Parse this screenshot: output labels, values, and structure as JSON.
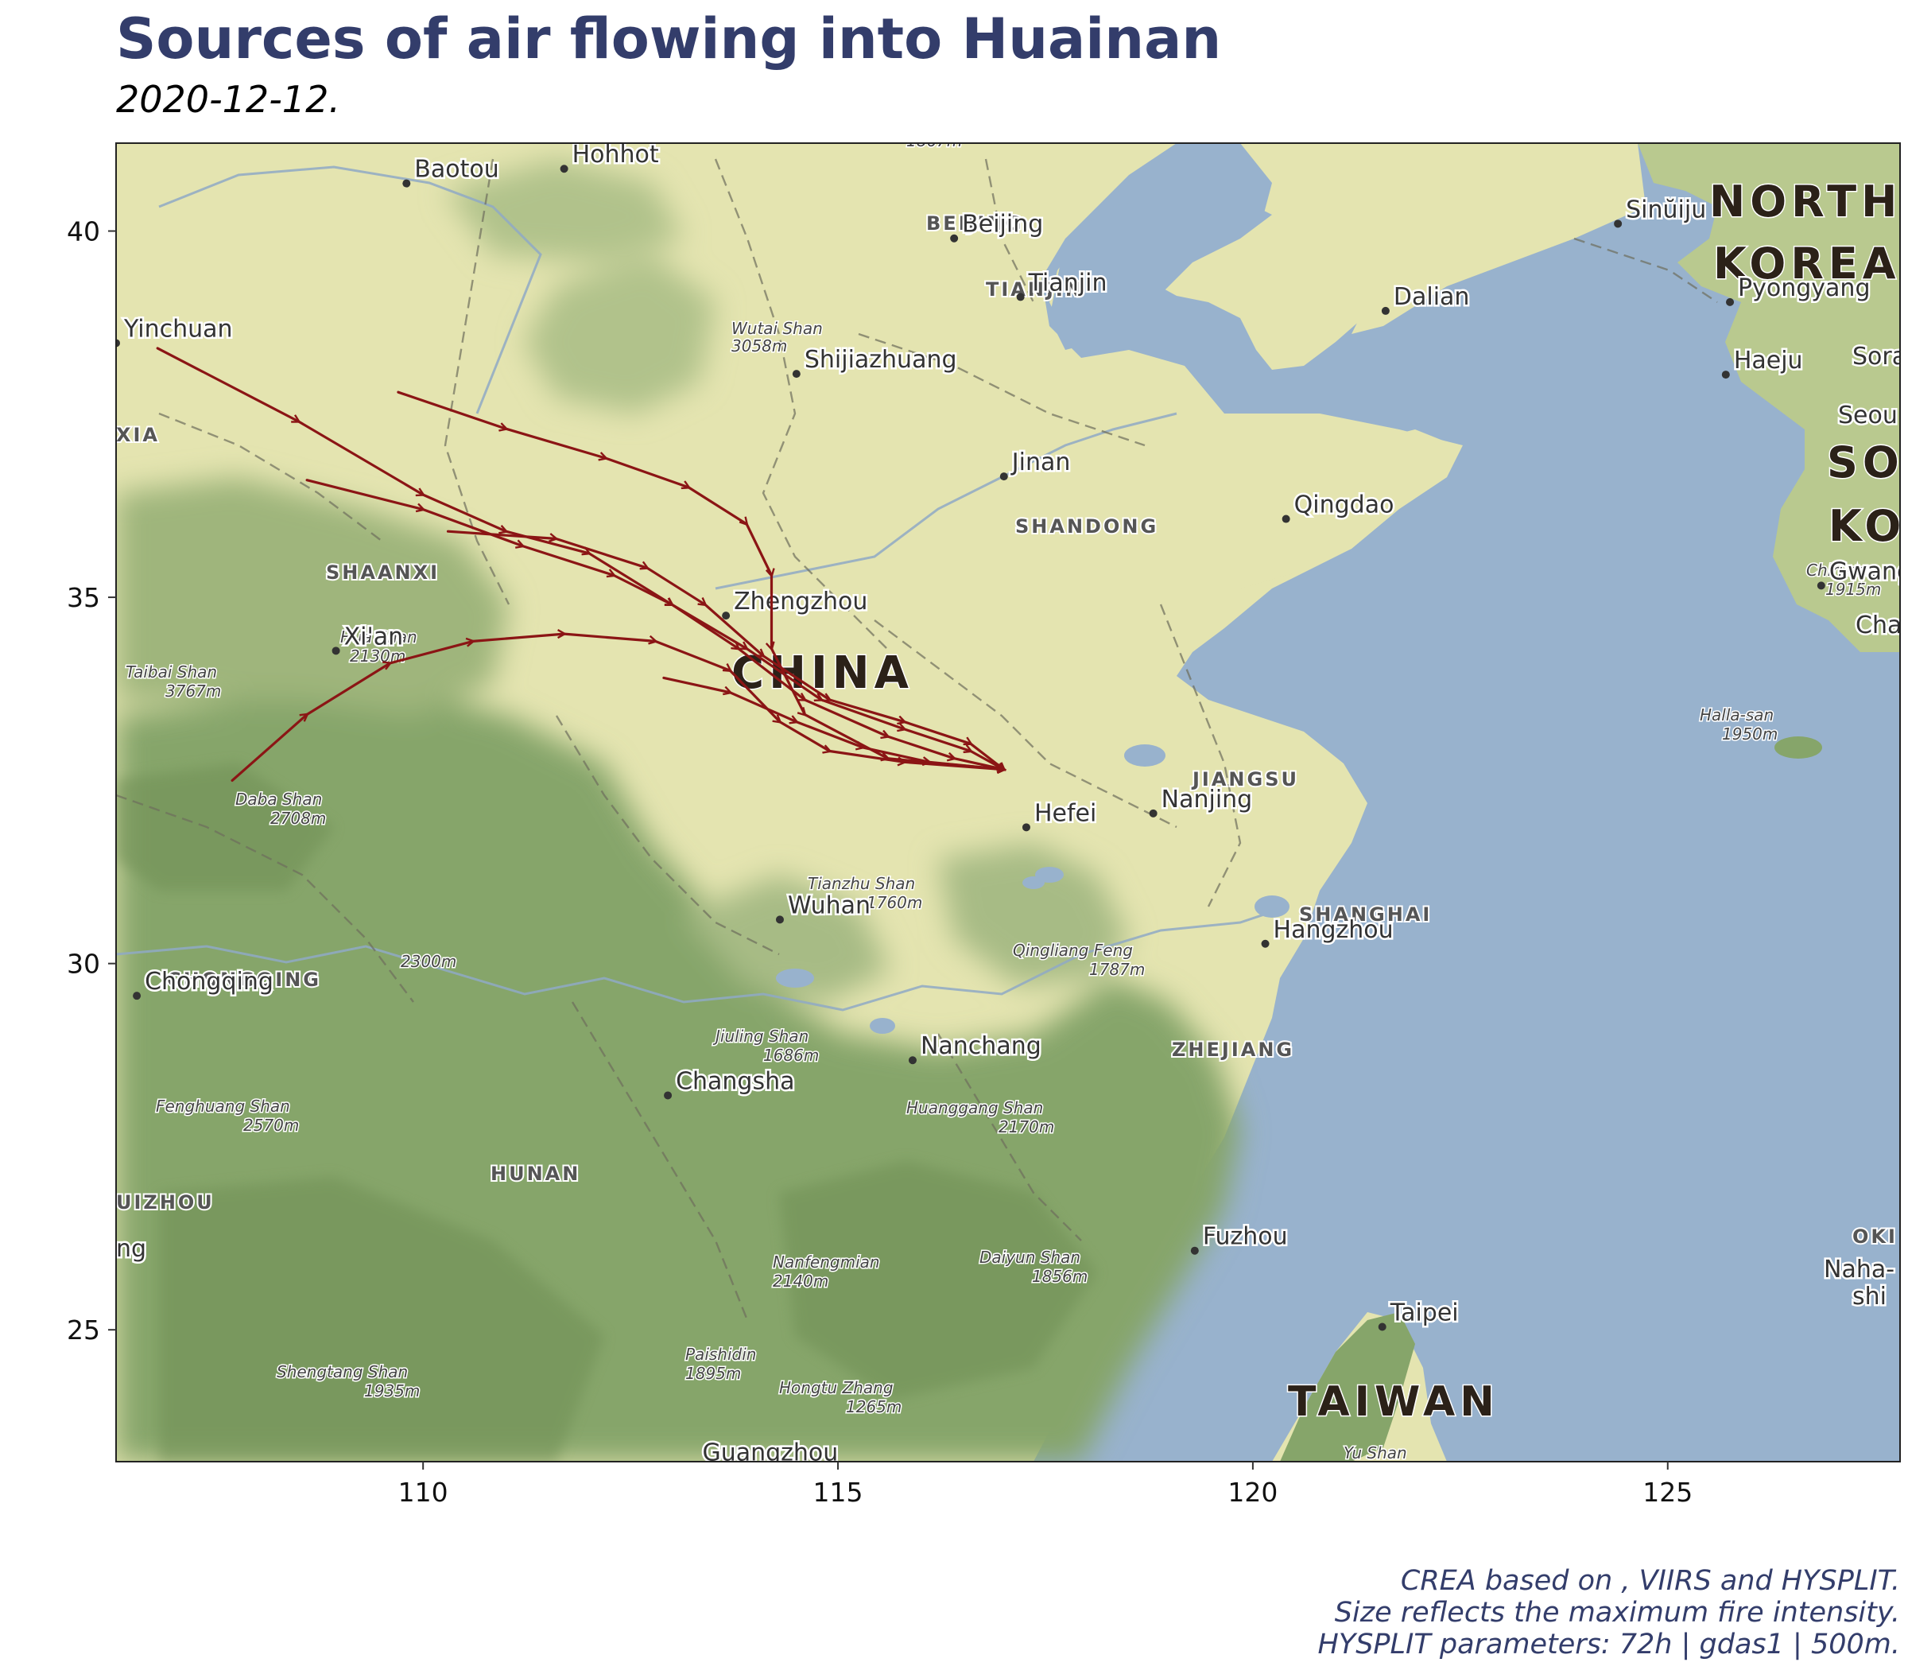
{
  "title": "Sources of air flowing into Huainan",
  "subtitle": "2020-12-12.",
  "caption": [
    "CREA based on , VIIRS and HYSPLIT.",
    "Size reflects the maximum fire intensity.",
    "HYSPLIT parameters: 72h | gdas1 | 500m."
  ],
  "colors": {
    "title": "#333d6b",
    "trajectory": "#8b1515",
    "sea": "#98b2cd",
    "land": "#e4e4b0",
    "forest": "#86a56a"
  },
  "chart_data": {
    "type": "map",
    "x_ticks": [
      110,
      115,
      120,
      125
    ],
    "y_ticks": [
      25,
      30,
      35,
      40
    ],
    "xlim": [
      106.3,
      127.8
    ],
    "ylim": [
      23.2,
      41.2
    ],
    "destination": {
      "name": "Huainan",
      "lon": 117.0,
      "lat": 32.65
    },
    "trajectories": [
      [
        [
          106.8,
          38.4
        ],
        [
          108.5,
          37.4
        ],
        [
          110.0,
          36.4
        ],
        [
          111.0,
          35.9
        ],
        [
          112.0,
          35.6
        ],
        [
          113.0,
          34.9
        ],
        [
          113.8,
          34.3
        ],
        [
          114.6,
          33.6
        ],
        [
          115.6,
          33.1
        ],
        [
          116.4,
          32.8
        ],
        [
          117.0,
          32.65
        ]
      ],
      [
        [
          109.7,
          37.8
        ],
        [
          111.0,
          37.3
        ],
        [
          112.2,
          36.9
        ],
        [
          113.2,
          36.5
        ],
        [
          113.9,
          36.0
        ],
        [
          114.2,
          35.3
        ],
        [
          114.2,
          34.3
        ],
        [
          114.6,
          33.4
        ],
        [
          115.6,
          32.8
        ],
        [
          117.0,
          32.65
        ]
      ],
      [
        [
          108.6,
          36.6
        ],
        [
          110.0,
          36.2
        ],
        [
          111.2,
          35.7
        ],
        [
          112.3,
          35.3
        ],
        [
          113.0,
          34.9
        ],
        [
          113.9,
          34.3
        ],
        [
          114.8,
          33.6
        ],
        [
          115.8,
          33.2
        ],
        [
          116.6,
          32.9
        ],
        [
          117.0,
          32.65
        ]
      ],
      [
        [
          107.7,
          32.5
        ],
        [
          108.6,
          33.4
        ],
        [
          109.6,
          34.1
        ],
        [
          110.6,
          34.4
        ],
        [
          111.7,
          34.5
        ],
        [
          112.8,
          34.4
        ],
        [
          113.7,
          34.0
        ],
        [
          114.3,
          33.3
        ],
        [
          114.9,
          32.9
        ],
        [
          115.8,
          32.75
        ],
        [
          117.0,
          32.65
        ]
      ],
      [
        [
          110.3,
          35.9
        ],
        [
          111.6,
          35.8
        ],
        [
          112.7,
          35.4
        ],
        [
          113.4,
          34.9
        ],
        [
          114.1,
          34.2
        ],
        [
          114.9,
          33.6
        ],
        [
          115.8,
          33.3
        ],
        [
          116.6,
          33.0
        ],
        [
          117.0,
          32.65
        ]
      ],
      [
        [
          112.9,
          33.9
        ],
        [
          113.7,
          33.7
        ],
        [
          114.5,
          33.3
        ],
        [
          115.3,
          32.95
        ],
        [
          116.1,
          32.75
        ],
        [
          117.0,
          32.65
        ]
      ]
    ],
    "cities": [
      {
        "name": "Baotou",
        "lon": 109.8,
        "lat": 40.65
      },
      {
        "name": "Hohhot",
        "lon": 111.7,
        "lat": 40.85
      },
      {
        "name": "Beijing",
        "lon": 116.4,
        "lat": 39.9
      },
      {
        "name": "Tianjin",
        "lon": 117.2,
        "lat": 39.1
      },
      {
        "name": "Shijiazhuang",
        "lon": 114.5,
        "lat": 38.05
      },
      {
        "name": "Yinchuan",
        "lon": 106.3,
        "lat": 38.47
      },
      {
        "name": "Jinan",
        "lon": 117.0,
        "lat": 36.65
      },
      {
        "name": "Qingdao",
        "lon": 120.4,
        "lat": 36.07
      },
      {
        "name": "Zhengzhou",
        "lon": 113.65,
        "lat": 34.75
      },
      {
        "name": "Xi'an",
        "lon": 108.95,
        "lat": 34.27
      },
      {
        "name": "Nanjing",
        "lon": 118.8,
        "lat": 32.05
      },
      {
        "name": "Hefei",
        "lon": 117.27,
        "lat": 31.86
      },
      {
        "name": "Wuhan",
        "lon": 114.3,
        "lat": 30.6
      },
      {
        "name": "Hangzhou",
        "lon": 120.15,
        "lat": 30.27
      },
      {
        "name": "Chongqing",
        "lon": 106.55,
        "lat": 29.56
      },
      {
        "name": "Nanchang",
        "lon": 115.9,
        "lat": 28.68
      },
      {
        "name": "Changsha",
        "lon": 112.95,
        "lat": 28.2
      },
      {
        "name": "Fuzhou",
        "lon": 119.3,
        "lat": 26.08
      },
      {
        "name": "Taipei",
        "lon": 121.56,
        "lat": 25.04
      },
      {
        "name": "Guangzhou",
        "lon": 113.27,
        "lat": 23.13
      },
      {
        "name": "Dalian",
        "lon": 121.6,
        "lat": 38.91
      },
      {
        "name": "Sinŭiju",
        "lon": 124.4,
        "lat": 40.1
      },
      {
        "name": "Pyongyang",
        "lon": 125.75,
        "lat": 39.03
      },
      {
        "name": "Haeju",
        "lon": 125.7,
        "lat": 38.04
      },
      {
        "name": "Gwangju",
        "lon": 126.85,
        "lat": 35.16
      }
    ],
    "provinces": [
      "BEIJING",
      "TIANJIN",
      "SHANDONG",
      "SHAANXI",
      "JIANGSU",
      "SHANGHAI",
      "CHONGQING",
      "ZHEJIANG",
      "HUNAN"
    ],
    "countries": [
      "CHINA",
      "TAIWAN"
    ],
    "peaks": [
      {
        "name": "Wutai Shan",
        "elev": "3058m"
      },
      {
        "name": "Hua Shan",
        "elev": "2130m"
      },
      {
        "name": "Taibai Shan",
        "elev": "3767m"
      },
      {
        "name": "Daba Shan",
        "elev": "2708m"
      },
      {
        "name": "Tianzhu Shan",
        "elev": "1760m"
      },
      {
        "name": "Qingliang Feng",
        "elev": "1787m"
      },
      {
        "name": "Jiuling Shan",
        "elev": "1686m"
      },
      {
        "name": "Huanggang Shan",
        "elev": "2170m"
      },
      {
        "name": "Fenghuang Shan",
        "elev": "2570m"
      },
      {
        "name": "Nanfengmian",
        "elev": "2140m"
      },
      {
        "name": "Daiyun Shan",
        "elev": "1856m"
      },
      {
        "name": "Paishidin",
        "elev": "1895m"
      },
      {
        "name": "Hongtu Zhang",
        "elev": "1265m"
      },
      {
        "name": "Shengtang Shan",
        "elev": "1935m"
      },
      {
        "name": "Halla-san",
        "elev": "1950m"
      },
      {
        "name": "Chiri-san",
        "elev": "1915m"
      }
    ],
    "cropped_labels": [
      "NORTH",
      "KOREA",
      "SO",
      "KO",
      "Seou",
      "Sora",
      "Cha",
      "OKI",
      "Naha-",
      "shi",
      "XIA",
      "UIZHOU",
      "ng",
      "Yu Shan",
      "2300m",
      "1867m"
    ]
  }
}
